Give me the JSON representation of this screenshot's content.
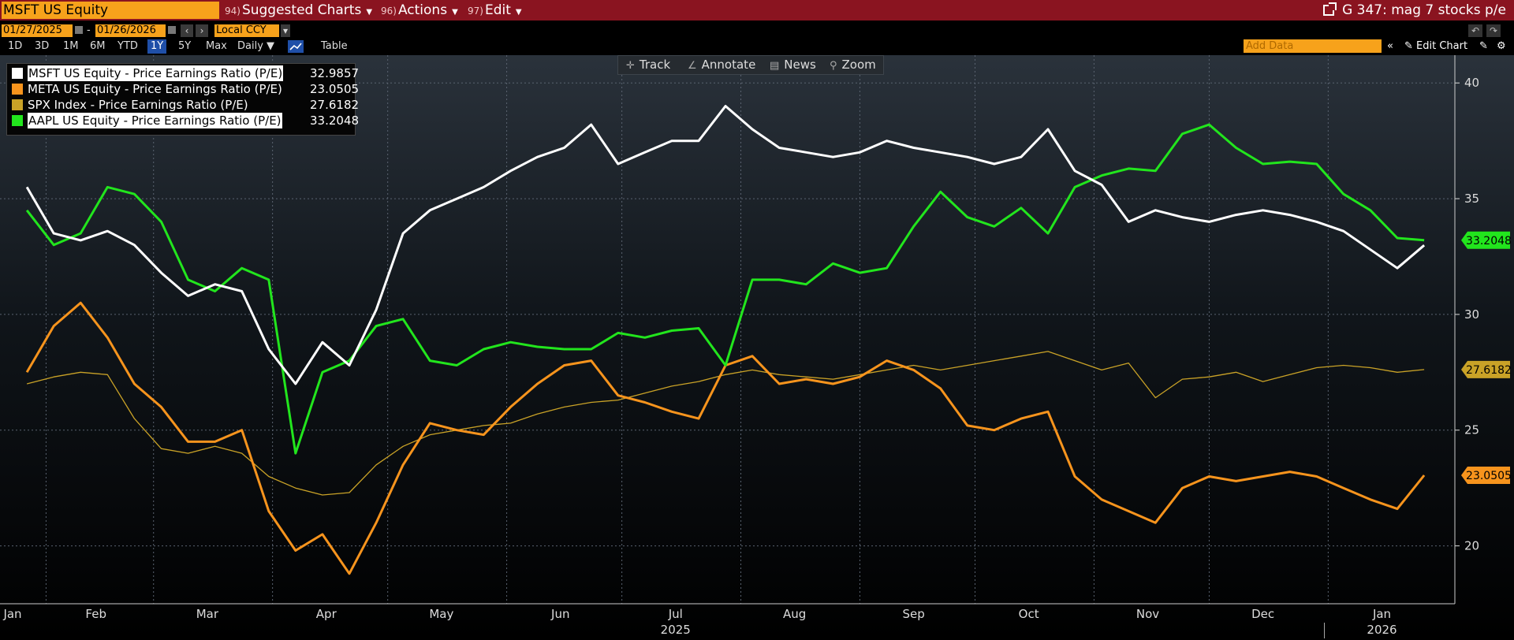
{
  "topbar": {
    "ticker": "MSFT US Equity",
    "menus": [
      {
        "num": "94)",
        "label": "Suggested Charts"
      },
      {
        "num": "96)",
        "label": "Actions"
      },
      {
        "num": "97)",
        "label": "Edit"
      }
    ],
    "graph_title": "G 347: mag 7 stocks p/e"
  },
  "controls": {
    "start_date": "01/27/2025",
    "end_date": "01/26/2026",
    "currency": "Local CCY",
    "ranges": [
      "1D",
      "3D",
      "1M",
      "6M",
      "YTD",
      "1Y",
      "5Y",
      "Max"
    ],
    "active_range": "1Y",
    "frequency": "Daily",
    "table_label": "Table",
    "add_data_placeholder": "Add Data",
    "edit_chart_label": "Edit Chart"
  },
  "chart_toolbar": {
    "track": "Track",
    "annotate": "Annotate",
    "news": "News",
    "zoom": "Zoom"
  },
  "colors": {
    "msft": "#ffffff",
    "meta": "#f7941d",
    "spx": "#c9a227",
    "aapl": "#22e51d",
    "brand_bar": "#8a1420",
    "accent": "#f7a21b"
  },
  "legend": [
    {
      "label": "MSFT US Equity - Price Earnings Ratio (P/E)",
      "value": "32.9857",
      "highlight": true
    },
    {
      "label": "META US Equity - Price Earnings Ratio (P/E)",
      "value": "23.0505",
      "highlight": false
    },
    {
      "label": "SPX Index - Price Earnings Ratio (P/E)",
      "value": "27.6182",
      "highlight": false
    },
    {
      "label": "AAPL US Equity - Price Earnings Ratio (P/E)",
      "value": "33.2048",
      "highlight": true
    }
  ],
  "chart_data": {
    "type": "line",
    "title": "",
    "xlabel": "",
    "ylabel": "",
    "x_ticks": [
      "Jan",
      "Feb",
      "Mar",
      "Apr",
      "May",
      "Jun",
      "Jul",
      "Aug",
      "Sep",
      "Oct",
      "Nov",
      "Dec",
      "Jan"
    ],
    "year_labels": [
      "2025",
      "2026"
    ],
    "ylim": [
      17.5,
      41.2
    ],
    "y_ticks": [
      20,
      25,
      30,
      35,
      40
    ],
    "grid": true,
    "right_axis_labels": [
      "33.2048",
      "27.6182",
      "23.0505"
    ],
    "series": [
      {
        "name": "MSFT US Equity - Price Earnings Ratio (P/E)",
        "x": [
          "2025-01-27",
          "2025-02-03",
          "2025-02-10",
          "2025-02-17",
          "2025-02-24",
          "2025-03-03",
          "2025-03-10",
          "2025-03-17",
          "2025-03-24",
          "2025-03-31",
          "2025-04-07",
          "2025-04-14",
          "2025-04-21",
          "2025-04-28",
          "2025-05-05",
          "2025-05-12",
          "2025-05-19",
          "2025-05-26",
          "2025-06-02",
          "2025-06-09",
          "2025-06-16",
          "2025-06-23",
          "2025-06-30",
          "2025-07-07",
          "2025-07-14",
          "2025-07-21",
          "2025-07-28",
          "2025-08-04",
          "2025-08-11",
          "2025-08-18",
          "2025-08-25",
          "2025-09-01",
          "2025-09-08",
          "2025-09-15",
          "2025-09-22",
          "2025-09-29",
          "2025-10-06",
          "2025-10-13",
          "2025-10-20",
          "2025-10-27",
          "2025-11-03",
          "2025-11-10",
          "2025-11-17",
          "2025-11-24",
          "2025-12-01",
          "2025-12-08",
          "2025-12-15",
          "2025-12-22",
          "2025-12-29",
          "2026-01-05",
          "2026-01-12",
          "2026-01-19",
          "2026-01-26"
        ],
        "values": [
          35.5,
          33.5,
          33.2,
          33.6,
          33.0,
          31.8,
          30.8,
          31.3,
          31.0,
          28.5,
          27.0,
          28.8,
          27.8,
          30.2,
          33.5,
          34.5,
          35.0,
          35.5,
          36.2,
          36.8,
          37.2,
          38.2,
          36.5,
          37.0,
          37.5,
          37.5,
          39.0,
          38.0,
          37.2,
          37.0,
          36.8,
          37.0,
          37.5,
          37.2,
          37.0,
          36.8,
          36.5,
          36.8,
          38.0,
          36.2,
          35.6,
          34.0,
          34.5,
          34.2,
          34.0,
          34.3,
          34.5,
          34.3,
          34.0,
          33.6,
          32.8,
          32.0,
          32.9857
        ]
      },
      {
        "name": "META US Equity - Price Earnings Ratio (P/E)",
        "x": [
          "2025-01-27",
          "2025-02-03",
          "2025-02-10",
          "2025-02-17",
          "2025-02-24",
          "2025-03-03",
          "2025-03-10",
          "2025-03-17",
          "2025-03-24",
          "2025-03-31",
          "2025-04-07",
          "2025-04-14",
          "2025-04-21",
          "2025-04-28",
          "2025-05-05",
          "2025-05-12",
          "2025-05-19",
          "2025-05-26",
          "2025-06-02",
          "2025-06-09",
          "2025-06-16",
          "2025-06-23",
          "2025-06-30",
          "2025-07-07",
          "2025-07-14",
          "2025-07-21",
          "2025-07-28",
          "2025-08-04",
          "2025-08-11",
          "2025-08-18",
          "2025-08-25",
          "2025-09-01",
          "2025-09-08",
          "2025-09-15",
          "2025-09-22",
          "2025-09-29",
          "2025-10-06",
          "2025-10-13",
          "2025-10-20",
          "2025-10-27",
          "2025-11-03",
          "2025-11-10",
          "2025-11-17",
          "2025-11-24",
          "2025-12-01",
          "2025-12-08",
          "2025-12-15",
          "2025-12-22",
          "2025-12-29",
          "2026-01-05",
          "2026-01-12",
          "2026-01-19",
          "2026-01-26"
        ],
        "values": [
          27.5,
          29.5,
          30.5,
          29.0,
          27.0,
          26.0,
          24.5,
          24.5,
          25.0,
          21.5,
          19.8,
          20.5,
          18.8,
          21.0,
          23.5,
          25.3,
          25.0,
          24.8,
          26.0,
          27.0,
          27.8,
          28.0,
          26.5,
          26.2,
          25.8,
          25.5,
          27.8,
          28.2,
          27.0,
          27.2,
          27.0,
          27.3,
          28.0,
          27.6,
          26.8,
          25.2,
          25.0,
          25.5,
          25.8,
          23.0,
          22.0,
          21.5,
          21.0,
          22.5,
          23.0,
          22.8,
          23.0,
          23.2,
          23.0,
          22.5,
          22.0,
          21.6,
          23.0505
        ]
      },
      {
        "name": "SPX Index - Price Earnings Ratio (P/E)",
        "x": [
          "2025-01-27",
          "2025-02-03",
          "2025-02-10",
          "2025-02-17",
          "2025-02-24",
          "2025-03-03",
          "2025-03-10",
          "2025-03-17",
          "2025-03-24",
          "2025-03-31",
          "2025-04-07",
          "2025-04-14",
          "2025-04-21",
          "2025-04-28",
          "2025-05-05",
          "2025-05-12",
          "2025-05-19",
          "2025-05-26",
          "2025-06-02",
          "2025-06-09",
          "2025-06-16",
          "2025-06-23",
          "2025-06-30",
          "2025-07-07",
          "2025-07-14",
          "2025-07-21",
          "2025-07-28",
          "2025-08-04",
          "2025-08-11",
          "2025-08-18",
          "2025-08-25",
          "2025-09-01",
          "2025-09-08",
          "2025-09-15",
          "2025-09-22",
          "2025-09-29",
          "2025-10-06",
          "2025-10-13",
          "2025-10-20",
          "2025-10-27",
          "2025-11-03",
          "2025-11-10",
          "2025-11-17",
          "2025-11-24",
          "2025-12-01",
          "2025-12-08",
          "2025-12-15",
          "2025-12-22",
          "2025-12-29",
          "2026-01-05",
          "2026-01-12",
          "2026-01-19",
          "2026-01-26"
        ],
        "values": [
          27.0,
          27.3,
          27.5,
          27.4,
          25.5,
          24.2,
          24.0,
          24.3,
          24.0,
          23.0,
          22.5,
          22.2,
          22.3,
          23.5,
          24.3,
          24.8,
          25.0,
          25.2,
          25.3,
          25.7,
          26.0,
          26.2,
          26.3,
          26.6,
          26.9,
          27.1,
          27.4,
          27.6,
          27.4,
          27.3,
          27.2,
          27.4,
          27.6,
          27.8,
          27.6,
          27.8,
          28.0,
          28.2,
          28.4,
          28.0,
          27.6,
          27.9,
          26.4,
          27.2,
          27.3,
          27.5,
          27.1,
          27.4,
          27.7,
          27.8,
          27.7,
          27.5,
          27.6182
        ]
      },
      {
        "name": "AAPL US Equity - Price Earnings Ratio (P/E)",
        "x": [
          "2025-01-27",
          "2025-02-03",
          "2025-02-10",
          "2025-02-17",
          "2025-02-24",
          "2025-03-03",
          "2025-03-10",
          "2025-03-17",
          "2025-03-24",
          "2025-03-31",
          "2025-04-07",
          "2025-04-14",
          "2025-04-21",
          "2025-04-28",
          "2025-05-05",
          "2025-05-12",
          "2025-05-19",
          "2025-05-26",
          "2025-06-02",
          "2025-06-09",
          "2025-06-16",
          "2025-06-23",
          "2025-06-30",
          "2025-07-07",
          "2025-07-14",
          "2025-07-21",
          "2025-07-28",
          "2025-08-04",
          "2025-08-11",
          "2025-08-18",
          "2025-08-25",
          "2025-09-01",
          "2025-09-08",
          "2025-09-15",
          "2025-09-22",
          "2025-09-29",
          "2025-10-06",
          "2025-10-13",
          "2025-10-20",
          "2025-10-27",
          "2025-11-03",
          "2025-11-10",
          "2025-11-17",
          "2025-11-24",
          "2025-12-01",
          "2025-12-08",
          "2025-12-15",
          "2025-12-22",
          "2025-12-29",
          "2026-01-05",
          "2026-01-12",
          "2026-01-19",
          "2026-01-26"
        ],
        "values": [
          34.5,
          33.0,
          33.5,
          35.5,
          35.2,
          34.0,
          31.5,
          31.0,
          32.0,
          31.5,
          24.0,
          27.5,
          28.0,
          29.5,
          29.8,
          28.0,
          27.8,
          28.5,
          28.8,
          28.6,
          28.5,
          28.5,
          29.2,
          29.0,
          29.3,
          29.4,
          27.8,
          31.5,
          31.5,
          31.3,
          32.2,
          31.8,
          32.0,
          33.8,
          35.3,
          34.2,
          33.8,
          34.6,
          33.5,
          35.5,
          36.0,
          36.3,
          36.2,
          37.8,
          38.2,
          37.2,
          36.5,
          36.6,
          36.5,
          35.2,
          34.5,
          33.3,
          33.2048
        ]
      }
    ]
  }
}
